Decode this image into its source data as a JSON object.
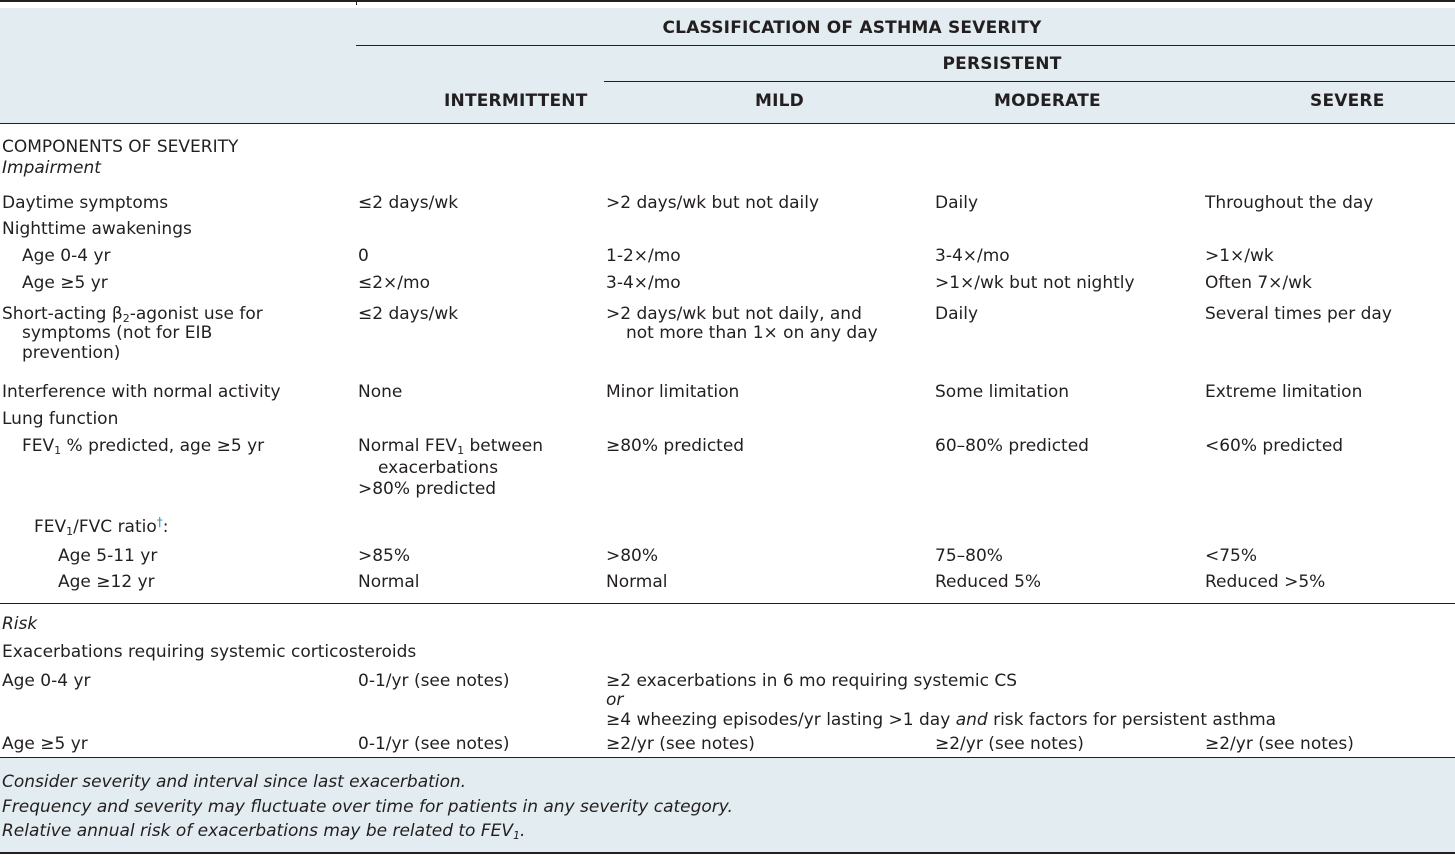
{
  "header": {
    "title": "CLASSIFICATION OF ASTHMA SEVERITY",
    "persistent": "PERSISTENT",
    "columns": [
      "INTERMITTENT",
      "MILD",
      "MODERATE",
      "SEVERE"
    ]
  },
  "sections": {
    "components": "COMPONENTS OF SEVERITY",
    "impairment": "Impairment",
    "risk": "Risk"
  },
  "rows": {
    "daytime": {
      "label": "Daytime symptoms",
      "values": [
        "≤2 days/wk",
        ">2 days/wk but not daily",
        "Daily",
        "Throughout the day"
      ]
    },
    "nighttime": {
      "label": "Nighttime awakenings"
    },
    "night_04": {
      "label": "Age 0-4 yr",
      "values": [
        "0",
        "1-2×/mo",
        "3-4×/mo",
        ">1×/wk"
      ]
    },
    "night_5": {
      "label": "Age ≥5 yr",
      "values": [
        "≤2×/mo",
        "3-4×/mo",
        ">1×/wk but not nightly",
        "Often 7×/wk"
      ]
    },
    "saba": {
      "label_line1": "Short-acting β",
      "label_sub": "2",
      "label_line1_end": "-agonist use for",
      "label_line2": "symptoms (not for EIB",
      "label_line3": "prevention)",
      "values": [
        "≤2 days/wk",
        ">2 days/wk but not daily, and",
        "Daily",
        "Several times per day"
      ],
      "mild_line2": "not more than 1× on any day"
    },
    "interference": {
      "label": "Interference with normal activity",
      "values": [
        "None",
        "Minor limitation",
        "Some limitation",
        "Extreme limitation"
      ]
    },
    "lung": {
      "label": "Lung function"
    },
    "fev1": {
      "label_pre": "FEV",
      "label_sub": "1",
      "label_post": " % predicted, age ≥5 yr",
      "intermittent_pre": "Normal FEV",
      "intermittent_sub": "1",
      "intermittent_post": " between",
      "intermittent_line2": "exacerbations",
      "intermittent_line3": ">80% predicted",
      "values": [
        "≥80% predicted",
        "60–80% predicted",
        "<60% predicted"
      ]
    },
    "ratio": {
      "label_pre": "FEV",
      "label_sub": "1",
      "label_post": "/FVC ratio",
      "dagger": "†",
      "colon": ":"
    },
    "ratio_511": {
      "label": "Age 5-11 yr",
      "values": [
        ">85%",
        ">80%",
        "75–80%",
        "<75%"
      ]
    },
    "ratio_12": {
      "label": "Age ≥12 yr",
      "values": [
        "Normal",
        "Normal",
        "Reduced 5%",
        "Reduced >5%"
      ]
    },
    "exac": {
      "label": "Exacerbations requiring systemic corticosteroids"
    },
    "risk_04": {
      "label": "Age 0-4 yr",
      "intermittent": "0-1/yr (see notes)",
      "persistent_line1": "≥2 exacerbations in 6 mo requiring systemic CS",
      "persistent_or": "or",
      "persistent_line3_pre": "≥4 wheezing episodes/yr lasting >1 day ",
      "persistent_line3_and": "and",
      "persistent_line3_post": " risk factors for persistent asthma"
    },
    "risk_5": {
      "label": "Age ≥5 yr",
      "values": [
        "0-1/yr (see notes)",
        "≥2/yr (see notes)",
        "≥2/yr (see notes)",
        "≥2/yr (see notes)"
      ]
    }
  },
  "notes": {
    "line1": "Consider severity and interval since last exacerbation.",
    "line2": "Frequency and severity may fluctuate over time for patients in any severity category.",
    "line3_pre": "Relative annual risk of exacerbations may be related to FEV",
    "line3_sub": "1",
    "line3_post": "."
  }
}
